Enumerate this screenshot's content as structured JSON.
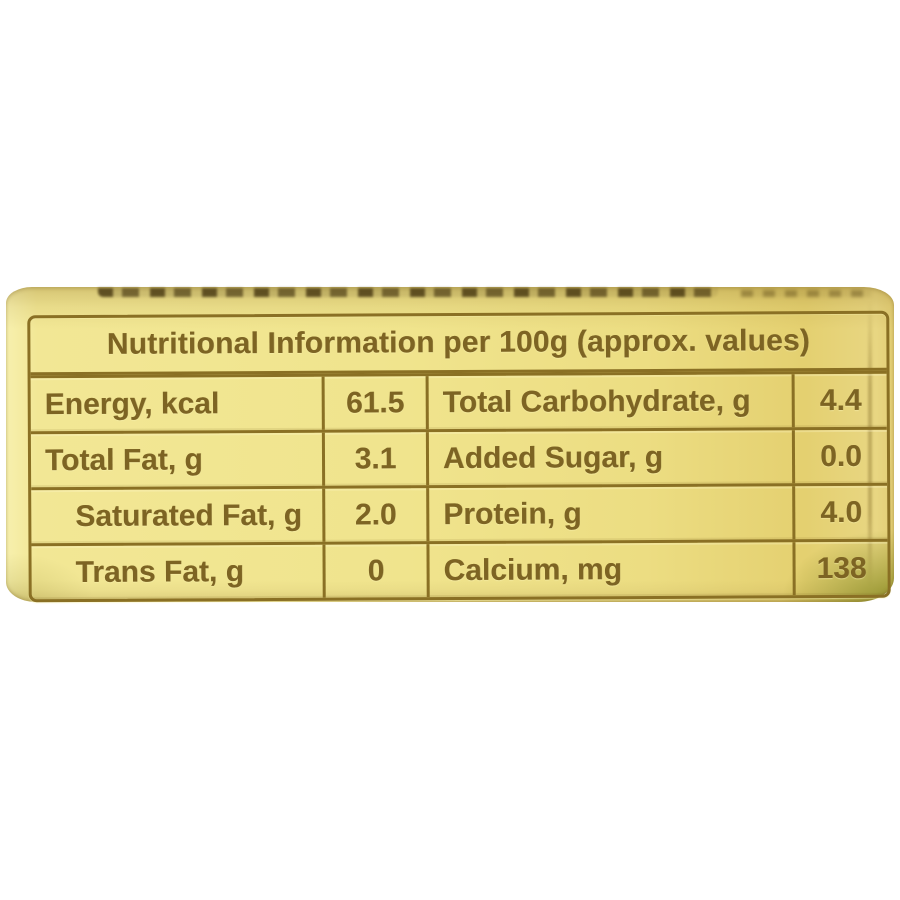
{
  "label": {
    "title": "Nutritional Information per 100g (approx. values)",
    "rows": [
      {
        "left_name": "Energy, kcal",
        "left_value": "61.5",
        "right_name": "Total Carbohydrate, g",
        "right_value": "4.4"
      },
      {
        "left_name": "Total Fat, g",
        "left_value": "3.1",
        "right_name": "Added Sugar, g",
        "right_value": "0.0"
      },
      {
        "left_name": "Saturated Fat, g",
        "left_value": "2.0",
        "right_name": "Protein, g",
        "right_value": "4.0"
      },
      {
        "left_name": "Trans Fat, g",
        "left_value": "0",
        "right_name": "Calcium, mg",
        "right_value": "138"
      }
    ],
    "colors": {
      "label_yellow": "#f0e48d",
      "border_olive": "#8a7024",
      "text_olive": "#7d6423",
      "corner_green": "#82861c",
      "page_background": "#ffffff"
    }
  }
}
